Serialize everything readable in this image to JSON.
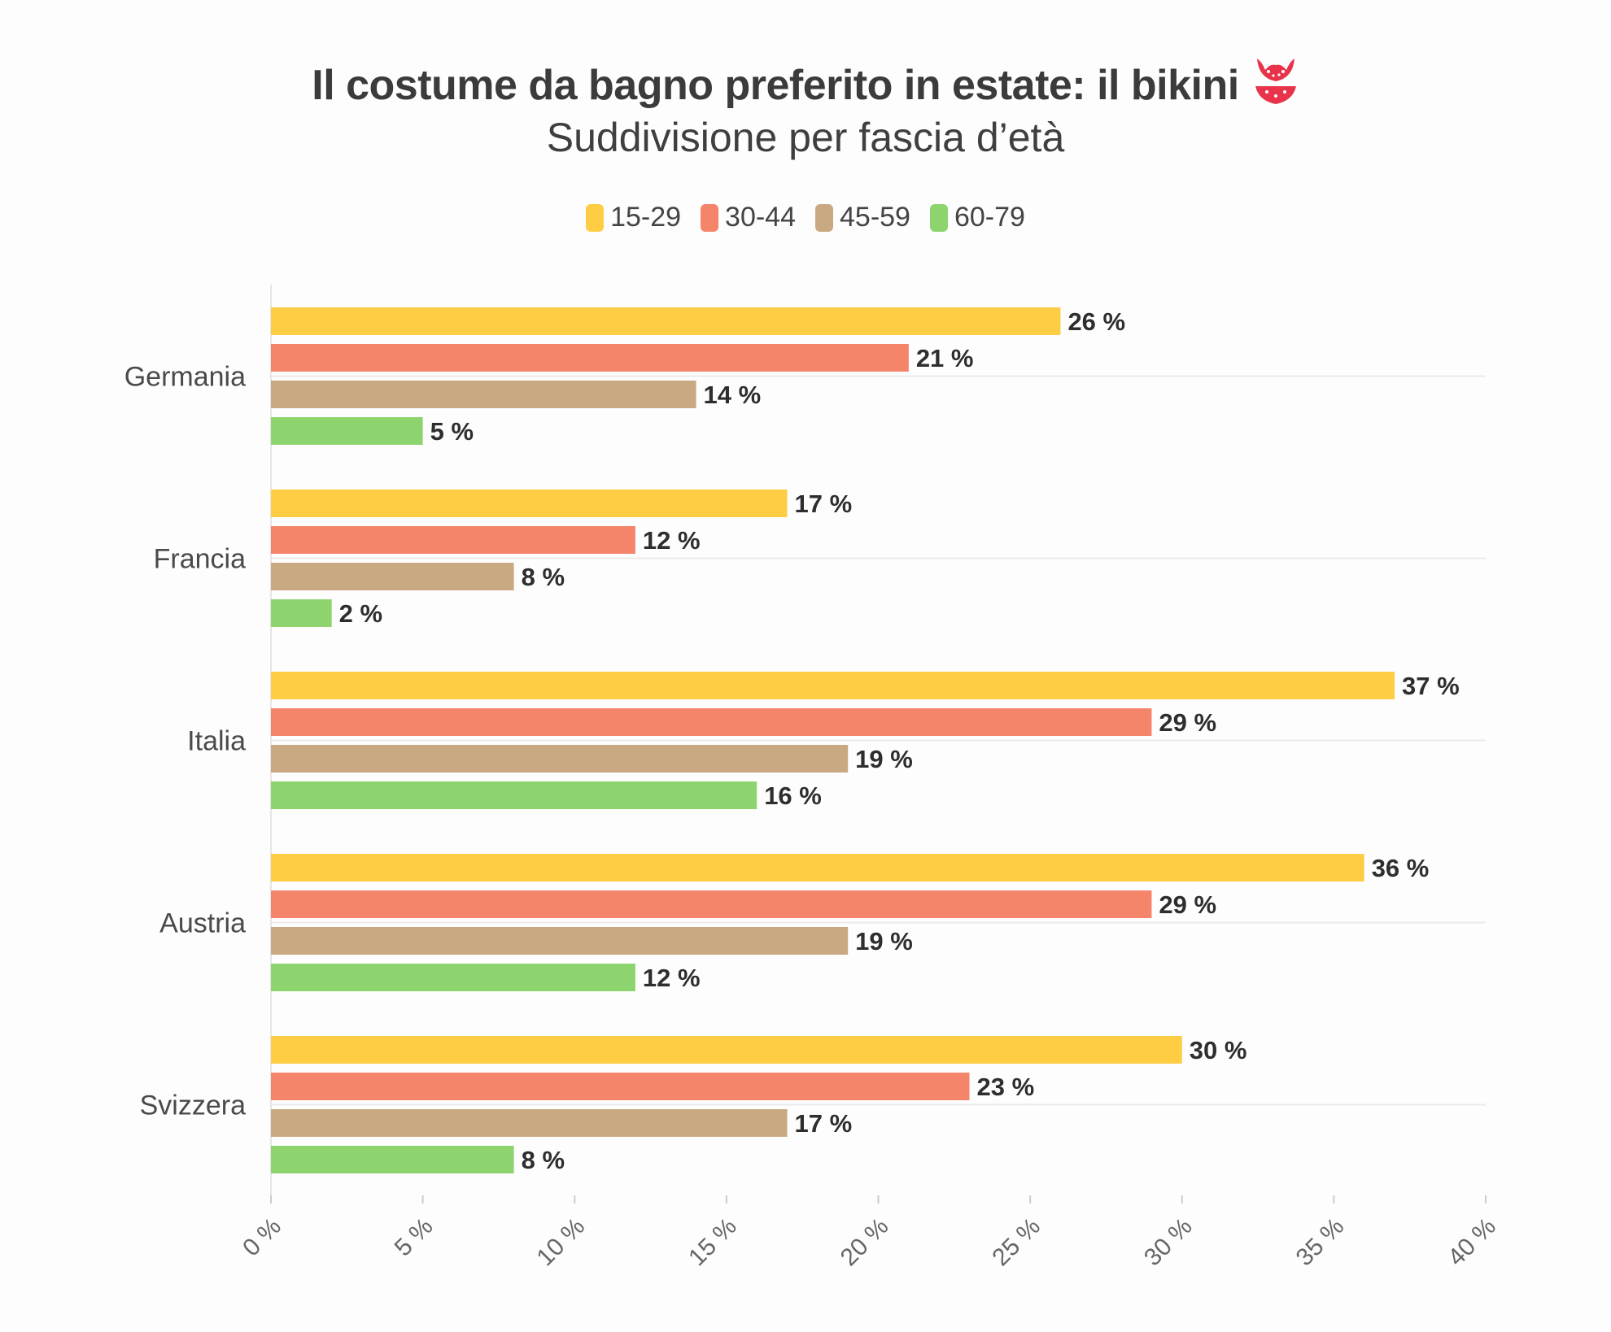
{
  "chart_data": {
    "type": "bar",
    "orientation": "horizontal",
    "title": "Il costume da bagno preferito in estate: il bikini",
    "subtitle": "Suddivisione per fascia d’età",
    "categories": [
      "Germania",
      "Francia",
      "Italia",
      "Austria",
      "Svizzera"
    ],
    "series": [
      {
        "name": "15-29",
        "color": "#ffcd44",
        "values": [
          26,
          17,
          37,
          36,
          30
        ]
      },
      {
        "name": "30-44",
        "color": "#f4846a",
        "values": [
          21,
          12,
          29,
          29,
          23
        ]
      },
      {
        "name": "45-59",
        "color": "#c9a982",
        "values": [
          14,
          8,
          19,
          19,
          17
        ]
      },
      {
        "name": "60-79",
        "color": "#8ed46e",
        "values": [
          5,
          2,
          16,
          12,
          8
        ]
      }
    ],
    "value_suffix": " %",
    "xlim": [
      0,
      40
    ],
    "x_ticks": [
      0,
      5,
      10,
      15,
      20,
      25,
      30,
      35,
      40
    ],
    "x_tick_labels": [
      "0 %",
      "5 %",
      "10 %",
      "15 %",
      "20 %",
      "25 %",
      "30 %",
      "35 %",
      "40 %"
    ],
    "legend_position": "top-center",
    "grid": "horizontal"
  },
  "icons": {
    "title_icon": "bikini-icon"
  }
}
